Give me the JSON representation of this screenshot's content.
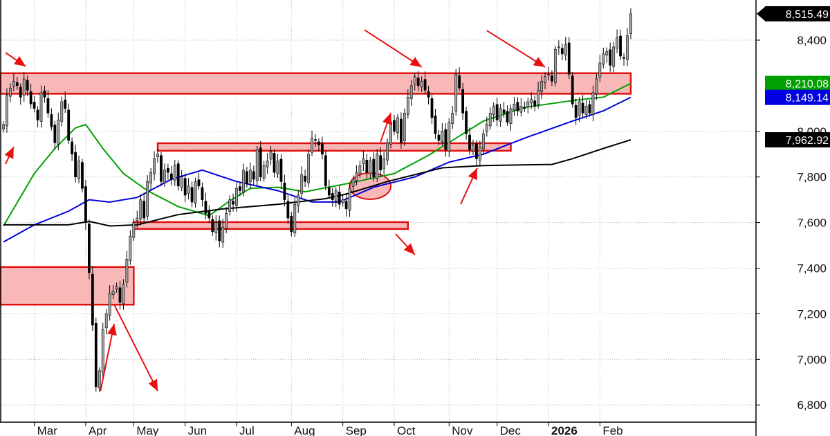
{
  "chart_data": {
    "type": "candlestick",
    "title": "",
    "xlabel": "",
    "ylabel": "",
    "ylim": [
      6720,
      8580
    ],
    "grid": true,
    "y_ticks": [
      "6,800",
      "7,000",
      "7,200",
      "7,400",
      "7,600",
      "7,800",
      "8,000",
      "8,400"
    ],
    "y_tick_values": [
      6800,
      7000,
      7200,
      7400,
      7600,
      7800,
      8000,
      8400
    ],
    "x_ticks": [
      {
        "label": "Mar",
        "bar": 9,
        "bold": false
      },
      {
        "label": "Apr",
        "bar": 24,
        "bold": false
      },
      {
        "label": "May",
        "bar": 38,
        "bold": false
      },
      {
        "label": "Jun",
        "bar": 53,
        "bold": false
      },
      {
        "label": "Jul",
        "bar": 68,
        "bold": false
      },
      {
        "label": "Aug",
        "bar": 84,
        "bold": false
      },
      {
        "label": "Sep",
        "bar": 99,
        "bold": false
      },
      {
        "label": "Oct",
        "bar": 114,
        "bold": false
      },
      {
        "label": "Nov",
        "bar": 130,
        "bold": false
      },
      {
        "label": "Dec",
        "bar": 144,
        "bold": false
      },
      {
        "label": "2026",
        "bar": 159,
        "bold": true
      },
      {
        "label": "Feb",
        "bar": 174,
        "bold": false
      }
    ],
    "closes": [
      8030,
      8160,
      8190,
      8220,
      8200,
      8150,
      8230,
      8180,
      8120,
      8100,
      8050,
      8170,
      8150,
      8080,
      8020,
      7950,
      8050,
      8130,
      8100,
      7960,
      7900,
      7800,
      7870,
      7750,
      7600,
      7380,
      7150,
      6880,
      6950,
      7130,
      7200,
      7290,
      7300,
      7320,
      7250,
      7330,
      7440,
      7540,
      7600,
      7620,
      7700,
      7620,
      7780,
      7820,
      7880,
      7900,
      7780,
      7830,
      7820,
      7790,
      7850,
      7760,
      7800,
      7720,
      7760,
      7690,
      7780,
      7760,
      7700,
      7640,
      7620,
      7560,
      7600,
      7520,
      7580,
      7640,
      7700,
      7680,
      7750,
      7740,
      7830,
      7770,
      7830,
      7790,
      7920,
      7800,
      7850,
      7870,
      7910,
      7820,
      7870,
      7780,
      7700,
      7620,
      7560,
      7680,
      7720,
      7810,
      7780,
      7900,
      7970,
      7960,
      7940,
      7900,
      7760,
      7720,
      7700,
      7740,
      7680,
      7700,
      7660,
      7750,
      7790,
      7820,
      7850,
      7880,
      7820,
      7870,
      7800,
      7900,
      7830,
      7880,
      7950,
      8040,
      8000,
      8060,
      7950,
      8080,
      8150,
      8200,
      8240,
      8200,
      8220,
      8180,
      8150,
      8060,
      7990,
      7960,
      8000,
      7920,
      8040,
      8080,
      8250,
      8190,
      8080,
      7990,
      7920,
      7940,
      7880,
      7930,
      7990,
      8030,
      8080,
      8110,
      8050,
      8100,
      8080,
      8040,
      8100,
      8120,
      8090,
      8110,
      8100,
      8130,
      8140,
      8110,
      8180,
      8220,
      8240,
      8250,
      8220,
      8360,
      8370,
      8340,
      8380,
      8250,
      8120,
      8060,
      8130,
      8080,
      8110,
      8080,
      8170,
      8230,
      8300,
      8340,
      8350,
      8290,
      8370,
      8410,
      8330,
      8320,
      8420,
      8515.49
    ],
    "series": [
      {
        "color": "#00a000",
        "last": "8,210.08",
        "points": [
          [
            0,
            7585
          ],
          [
            9,
            7815
          ],
          [
            15,
            7925
          ],
          [
            21,
            8015
          ],
          [
            24,
            8030
          ],
          [
            29,
            7925
          ],
          [
            35,
            7815
          ],
          [
            42,
            7740
          ],
          [
            51,
            7670
          ],
          [
            60,
            7630
          ],
          [
            66,
            7695
          ],
          [
            72,
            7750
          ],
          [
            80,
            7755
          ],
          [
            88,
            7735
          ],
          [
            100,
            7770
          ],
          [
            114,
            7815
          ],
          [
            124,
            7895
          ],
          [
            132,
            7970
          ],
          [
            140,
            8045
          ],
          [
            152,
            8105
          ],
          [
            166,
            8135
          ],
          [
            175,
            8150
          ],
          [
            183,
            8210.08
          ]
        ]
      },
      {
        "color": "#0000e0",
        "last": "8,149.14",
        "points": [
          [
            0,
            7515
          ],
          [
            9,
            7590
          ],
          [
            19,
            7650
          ],
          [
            25,
            7700
          ],
          [
            31,
            7690
          ],
          [
            39,
            7710
          ],
          [
            49,
            7790
          ],
          [
            58,
            7830
          ],
          [
            68,
            7780
          ],
          [
            80,
            7740
          ],
          [
            90,
            7690
          ],
          [
            98,
            7690
          ],
          [
            108,
            7755
          ],
          [
            120,
            7800
          ],
          [
            130,
            7865
          ],
          [
            140,
            7900
          ],
          [
            152,
            7970
          ],
          [
            166,
            8045
          ],
          [
            175,
            8090
          ],
          [
            183,
            8149.14
          ]
        ]
      },
      {
        "color": "#000000",
        "last": "7,962.92",
        "points": [
          [
            0,
            7590
          ],
          [
            9,
            7590
          ],
          [
            19,
            7590
          ],
          [
            25,
            7605
          ],
          [
            31,
            7585
          ],
          [
            39,
            7590
          ],
          [
            51,
            7635
          ],
          [
            64,
            7660
          ],
          [
            80,
            7680
          ],
          [
            94,
            7705
          ],
          [
            100,
            7725
          ],
          [
            112,
            7780
          ],
          [
            128,
            7840
          ],
          [
            140,
            7850
          ],
          [
            160,
            7855
          ],
          [
            166,
            7880
          ],
          [
            175,
            7925
          ],
          [
            183,
            7962.92
          ]
        ]
      }
    ],
    "last_price": "8,515.49",
    "zones": [
      {
        "from_bar": -1,
        "to_bar": 183,
        "low": 8165,
        "high": 8255
      },
      {
        "from_bar": 45,
        "to_bar": 148,
        "low": 7915,
        "high": 7948
      },
      {
        "from_bar": 38,
        "to_bar": 118,
        "low": 7572,
        "high": 7602
      },
      {
        "from_bar": -1,
        "to_bar": 38,
        "low": 7240,
        "high": 7405
      }
    ],
    "ellipse": {
      "bar": 107,
      "price": 7760,
      "bar_radius": 6,
      "price_radius": 58
    },
    "arrows": [
      {
        "from": [
          0.6,
          8345
        ],
        "to": [
          6.5,
          8285
        ]
      },
      {
        "from": [
          0.6,
          7857
        ],
        "to": [
          3,
          7932
        ]
      },
      {
        "from": [
          28.3,
          6861
        ],
        "to": [
          32.3,
          7156
        ]
      },
      {
        "from": [
          32.3,
          7240
        ],
        "to": [
          45,
          6861
        ]
      },
      {
        "from": [
          105.3,
          8445
        ],
        "to": [
          122,
          8282
        ]
      },
      {
        "from": [
          110,
          7954
        ],
        "to": [
          113,
          8081
        ]
      },
      {
        "from": [
          114.4,
          7550
        ],
        "to": [
          120,
          7459
        ]
      },
      {
        "from": [
          133.4,
          7681
        ],
        "to": [
          138.2,
          7839
        ]
      },
      {
        "from": [
          141,
          8442
        ],
        "to": [
          158,
          8282
        ]
      }
    ],
    "colors": {
      "zone_fill": "#f9b8b8",
      "zone_stroke": "#e01010",
      "up_candle": "#a0a0a0",
      "down_candle": "#000000"
    }
  }
}
